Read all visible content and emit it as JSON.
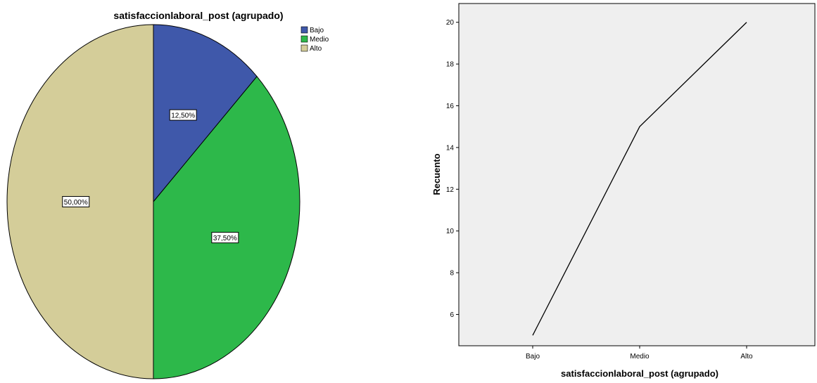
{
  "chart_data": [
    {
      "type": "pie",
      "title": "satisfaccionlaboral_post (agrupado)",
      "legend_position": "top-right",
      "slices": [
        {
          "name": "Bajo",
          "value": 12.5,
          "label": "12,50%",
          "color": "#3f58aa"
        },
        {
          "name": "Medio",
          "value": 37.5,
          "label": "37,50%",
          "color": "#2db84a"
        },
        {
          "name": "Alto",
          "value": 50.0,
          "label": "50,00%",
          "color": "#d4cd99"
        }
      ]
    },
    {
      "type": "line",
      "title": "",
      "xlabel": "satisfaccionlaboral_post (agrupado)",
      "ylabel": "Recuento",
      "categories": [
        "Bajo",
        "Medio",
        "Alto"
      ],
      "series": [
        {
          "values": [
            5,
            15,
            20
          ],
          "color": "#000000"
        }
      ],
      "ylim": [
        4.5,
        20.9
      ],
      "yticks": [
        6,
        8,
        10,
        12,
        14,
        16,
        18,
        20
      ],
      "plot_background": "#efefef",
      "grid": false
    }
  ]
}
